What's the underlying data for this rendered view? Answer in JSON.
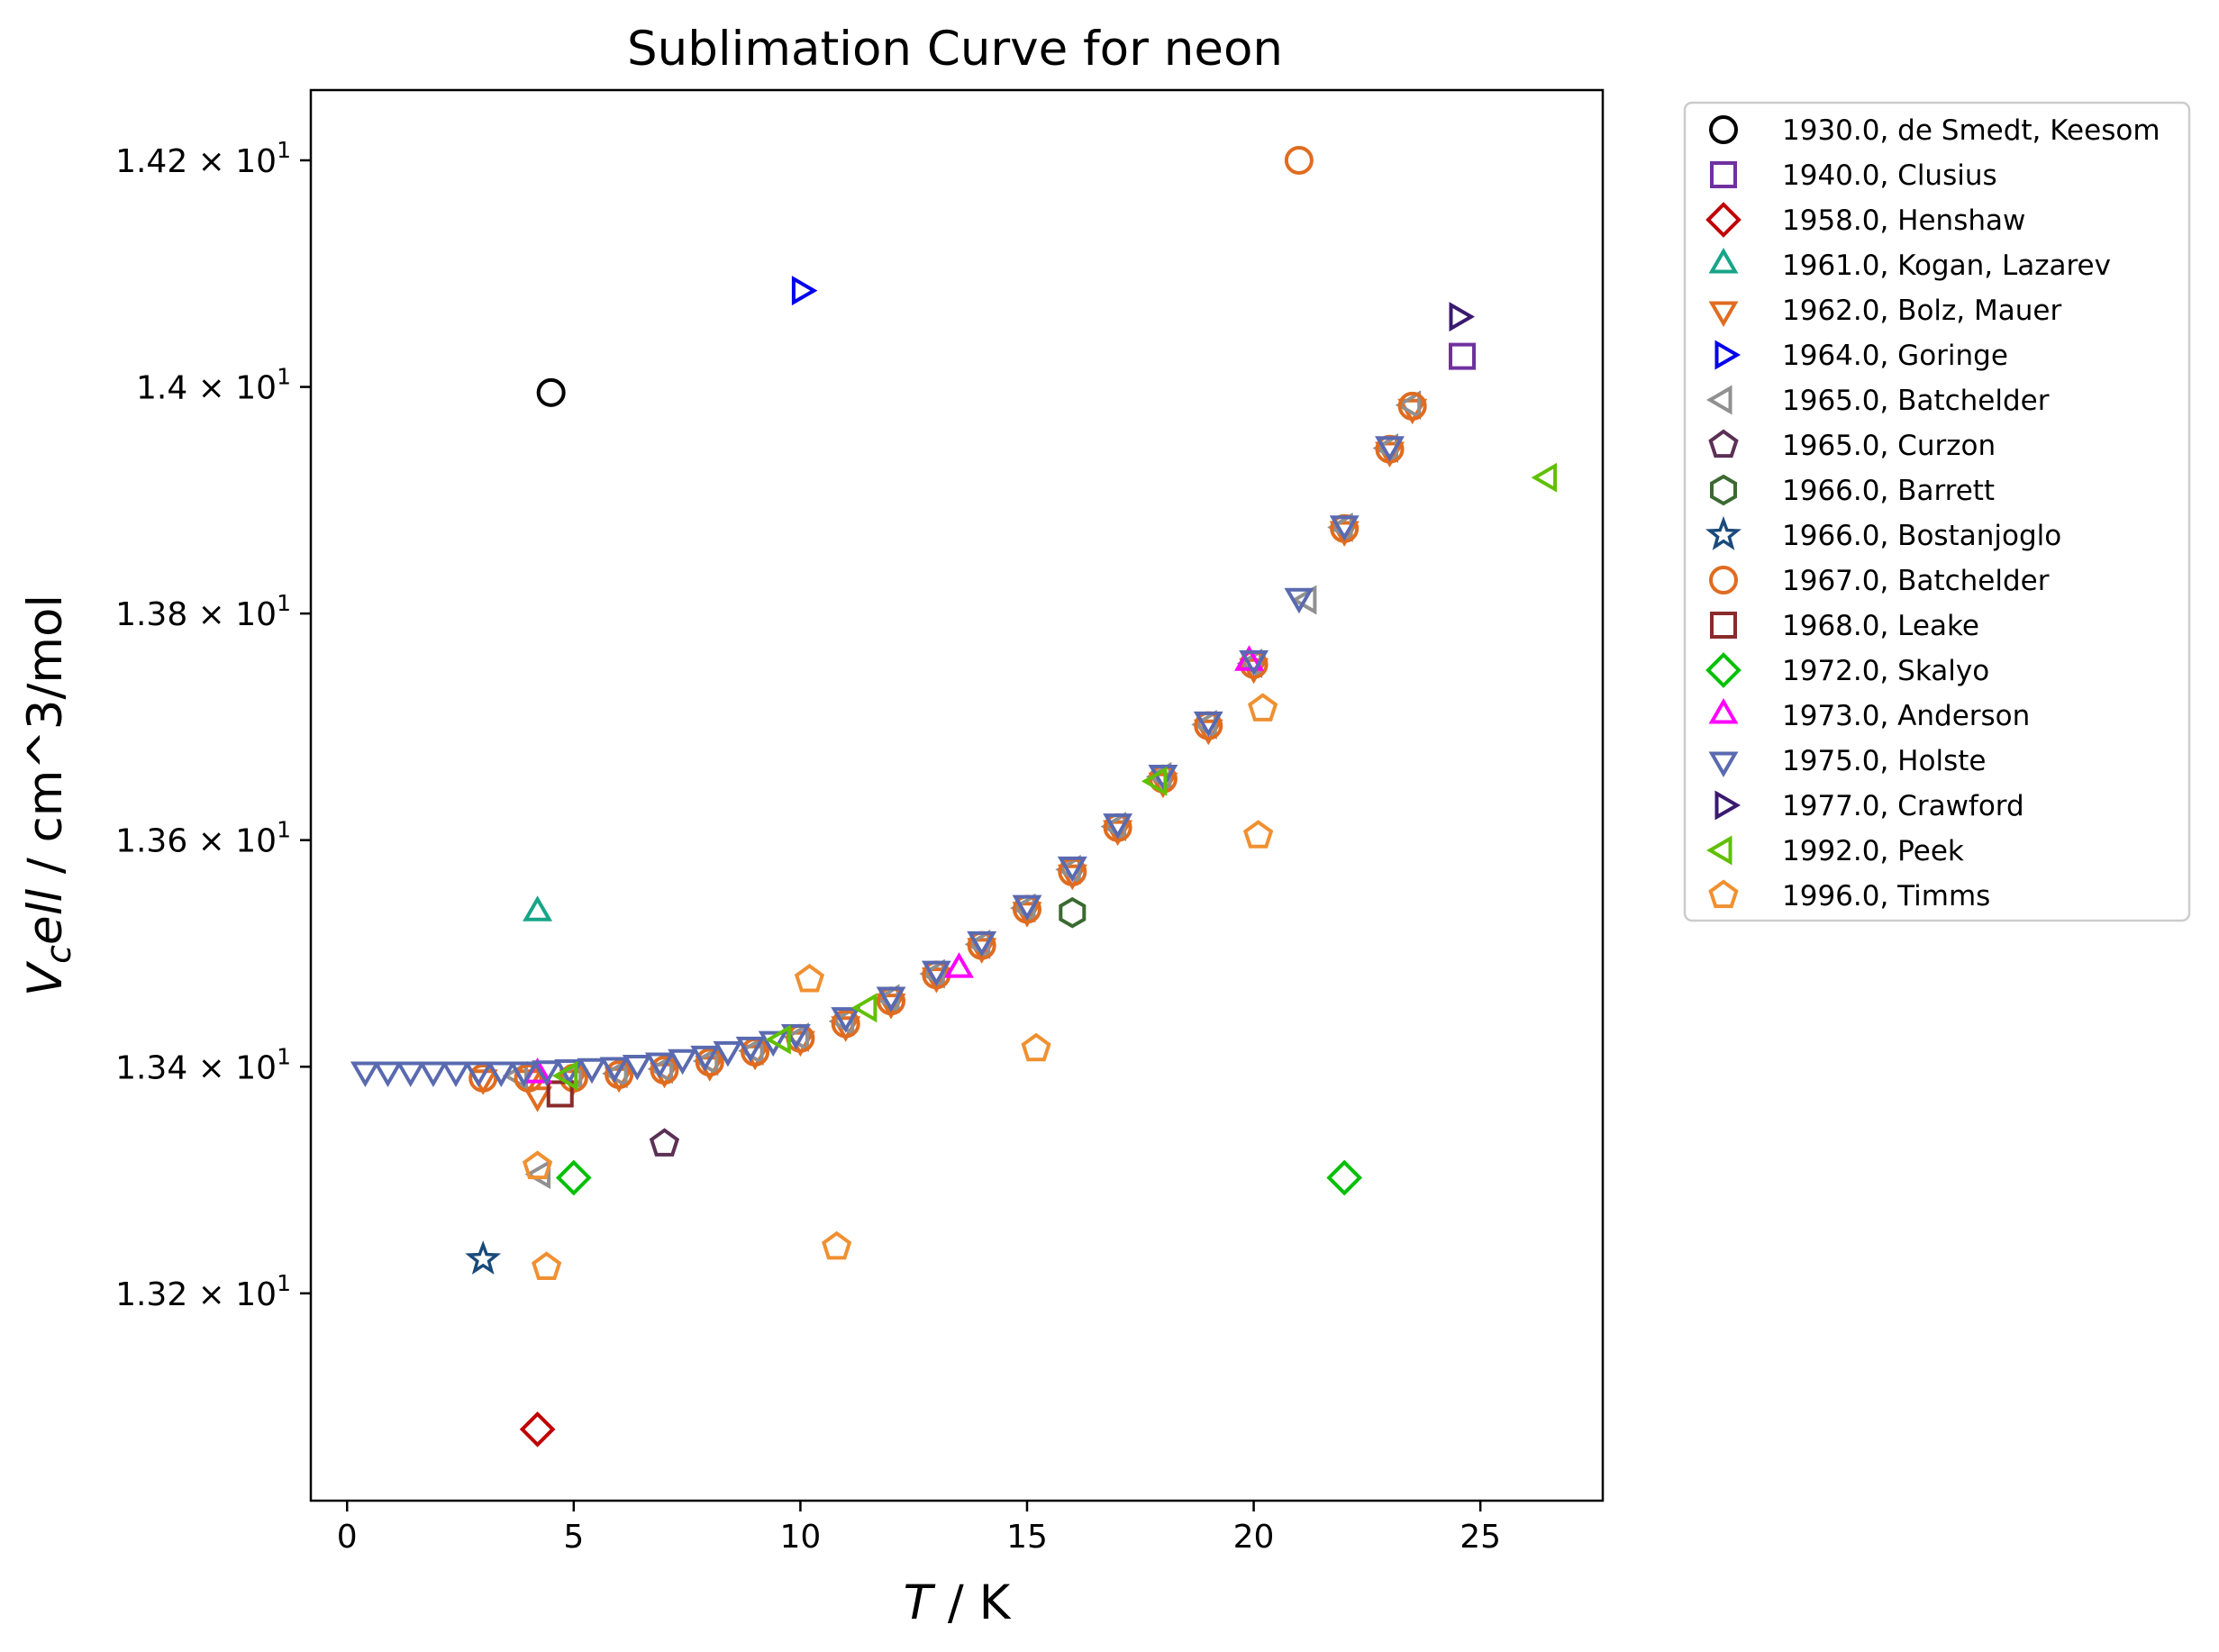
{
  "chart_data": {
    "type": "scatter",
    "title": "Sublimation Curve for neon",
    "xlabel": {
      "symbol": "T",
      "rest": " / K"
    },
    "ylabel": {
      "symbol": "V",
      "sub": "c",
      "symbol2": "ell",
      "rest": " / cm^3/mol"
    },
    "xlim": [
      -0.8,
      27.7
    ],
    "ylim": [
      13.017,
      14.262
    ],
    "grid": false,
    "legend_position": "outside-right",
    "x_ticks": [
      {
        "value": 0,
        "label": "0"
      },
      {
        "value": 5,
        "label": "5"
      },
      {
        "value": 10,
        "label": "10"
      },
      {
        "value": 15,
        "label": "15"
      },
      {
        "value": 20,
        "label": "20"
      },
      {
        "value": 25,
        "label": "25"
      }
    ],
    "y_ticks": [
      {
        "value": 13.2,
        "mantissa": "1.32",
        "times": "×",
        "base": "10",
        "exp": "1"
      },
      {
        "value": 13.4,
        "mantissa": "1.34",
        "times": "×",
        "base": "10",
        "exp": "1"
      },
      {
        "value": 13.6,
        "mantissa": "1.36",
        "times": "×",
        "base": "10",
        "exp": "1"
      },
      {
        "value": 13.8,
        "mantissa": "1.38",
        "times": "×",
        "base": "10",
        "exp": "1"
      },
      {
        "value": 14.0,
        "mantissa": "1.4",
        "times": "×",
        "base": "10",
        "exp": "1"
      },
      {
        "value": 14.2,
        "mantissa": "1.42",
        "times": "×",
        "base": "10",
        "exp": "1"
      }
    ],
    "series": [
      {
        "name": "1930.0, de Smedt, Keesom",
        "marker": "circle",
        "color": "#000000",
        "points": [
          [
            4.5,
            13.995
          ]
        ]
      },
      {
        "name": "1940.0, Clusius",
        "marker": "square",
        "color": "#7030a0",
        "points": [
          [
            24.6,
            14.027
          ]
        ]
      },
      {
        "name": "1958.0, Henshaw",
        "marker": "diamond",
        "color": "#c00000",
        "points": [
          [
            4.2,
            13.08
          ]
        ]
      },
      {
        "name": "1961.0, Kogan, Lazarev",
        "marker": "triangle-up",
        "color": "#17a589",
        "points": [
          [
            4.2,
            13.536
          ]
        ]
      },
      {
        "name": "1962.0, Bolz, Mauer",
        "marker": "triangle-down",
        "color": "#e06c20",
        "points": [
          [
            3.0,
            13.39
          ],
          [
            4.0,
            13.39
          ],
          [
            4.2,
            13.375
          ],
          [
            5.0,
            13.39
          ],
          [
            6.0,
            13.392
          ],
          [
            7.0,
            13.396
          ],
          [
            8.0,
            13.402
          ],
          [
            9.0,
            13.412
          ],
          [
            10.0,
            13.424
          ],
          [
            11.0,
            13.437
          ],
          [
            12.0,
            13.457
          ],
          [
            13.0,
            13.48
          ],
          [
            14.0,
            13.506
          ],
          [
            15.0,
            13.538
          ],
          [
            16.0,
            13.571
          ],
          [
            17.0,
            13.61
          ],
          [
            18.0,
            13.652
          ],
          [
            19.0,
            13.699
          ],
          [
            20.0,
            13.753
          ],
          [
            22.0,
            13.874
          ],
          [
            23.0,
            13.944
          ],
          [
            23.5,
            13.982
          ]
        ]
      },
      {
        "name": "1964.0, Goringe",
        "marker": "triangle-right",
        "color": "#0000ee",
        "points": [
          [
            10.0,
            14.085
          ]
        ]
      },
      {
        "name": "1965.0, Batchelder",
        "marker": "triangle-left",
        "color": "#909090",
        "points": [
          [
            3.8,
            13.392
          ],
          [
            4.3,
            13.305
          ],
          [
            5.0,
            13.393
          ],
          [
            6.0,
            13.394
          ],
          [
            7.0,
            13.398
          ],
          [
            8.0,
            13.405
          ],
          [
            9.0,
            13.414
          ],
          [
            10.0,
            13.426
          ],
          [
            11.0,
            13.44
          ],
          [
            12.0,
            13.46
          ],
          [
            13.0,
            13.482
          ],
          [
            14.0,
            13.508
          ],
          [
            15.0,
            13.54
          ],
          [
            16.0,
            13.574
          ],
          [
            17.0,
            13.612
          ],
          [
            18.0,
            13.656
          ],
          [
            19.0,
            13.702
          ],
          [
            20.0,
            13.756
          ],
          [
            21.2,
            13.812
          ],
          [
            22.0,
            13.876
          ],
          [
            23.0,
            13.946
          ],
          [
            23.5,
            13.984
          ]
        ]
      },
      {
        "name": "1965.0, Curzon",
        "marker": "pentagon",
        "color": "#5c3055",
        "points": [
          [
            7.0,
            13.332
          ]
        ]
      },
      {
        "name": "1966.0, Barrett",
        "marker": "hexagon",
        "color": "#3a6a30",
        "points": [
          [
            16.0,
            13.536
          ]
        ]
      },
      {
        "name": "1966.0, Bostanjoglo",
        "marker": "star",
        "color": "#1a4a7a",
        "points": [
          [
            3.0,
            13.23
          ]
        ]
      },
      {
        "name": "1967.0, Batchelder",
        "marker": "circle",
        "color": "#e06c20",
        "points": [
          [
            3.0,
            13.39
          ],
          [
            4.0,
            13.39
          ],
          [
            5.0,
            13.39
          ],
          [
            6.0,
            13.393
          ],
          [
            7.0,
            13.397
          ],
          [
            8.0,
            13.404
          ],
          [
            9.0,
            13.413
          ],
          [
            10.0,
            13.425
          ],
          [
            11.0,
            13.438
          ],
          [
            12.0,
            13.458
          ],
          [
            13.0,
            13.481
          ],
          [
            14.0,
            13.507
          ],
          [
            15.0,
            13.539
          ],
          [
            16.0,
            13.572
          ],
          [
            17.0,
            13.611
          ],
          [
            18.0,
            13.654
          ],
          [
            19.0,
            13.701
          ],
          [
            20.0,
            13.755
          ],
          [
            21.0,
            14.2
          ],
          [
            22.0,
            13.875
          ],
          [
            23.0,
            13.945
          ],
          [
            23.5,
            13.983
          ]
        ]
      },
      {
        "name": "1968.0, Leake",
        "marker": "square",
        "color": "#8b2a2a",
        "points": [
          [
            4.7,
            13.376
          ]
        ]
      },
      {
        "name": "1972.0, Skalyo",
        "marker": "diamond",
        "color": "#00c000",
        "points": [
          [
            5.0,
            13.302
          ],
          [
            22.0,
            13.302
          ]
        ]
      },
      {
        "name": "1973.0, Anderson",
        "marker": "triangle-up",
        "color": "#ff00ff",
        "points": [
          [
            4.2,
            13.393
          ],
          [
            13.5,
            13.486
          ],
          [
            19.9,
            13.757
          ]
        ]
      },
      {
        "name": "1975.0, Holste",
        "marker": "triangle-down",
        "color": "#5a6ab0",
        "points": [
          [
            0.4,
            13.397
          ],
          [
            0.9,
            13.397
          ],
          [
            1.4,
            13.397
          ],
          [
            1.9,
            13.397
          ],
          [
            2.4,
            13.397
          ],
          [
            2.9,
            13.397
          ],
          [
            3.4,
            13.397
          ],
          [
            3.9,
            13.397
          ],
          [
            4.4,
            13.398
          ],
          [
            4.9,
            13.399
          ],
          [
            5.4,
            13.4
          ],
          [
            5.9,
            13.401
          ],
          [
            6.4,
            13.403
          ],
          [
            6.9,
            13.405
          ],
          [
            7.4,
            13.408
          ],
          [
            7.9,
            13.411
          ],
          [
            8.4,
            13.415
          ],
          [
            8.9,
            13.419
          ],
          [
            9.4,
            13.424
          ],
          [
            9.9,
            13.43
          ],
          [
            11.0,
            13.445
          ],
          [
            12.0,
            13.463
          ],
          [
            13.0,
            13.486
          ],
          [
            14.0,
            13.512
          ],
          [
            15.0,
            13.544
          ],
          [
            16.0,
            13.578
          ],
          [
            17.0,
            13.616
          ],
          [
            18.0,
            13.659
          ],
          [
            19.0,
            13.706
          ],
          [
            20.0,
            13.76
          ],
          [
            21.0,
            13.815
          ],
          [
            22.0,
            13.879
          ],
          [
            23.0,
            13.949
          ]
        ]
      },
      {
        "name": "1977.0, Crawford",
        "marker": "triangle-right",
        "color": "#3a1a70",
        "points": [
          [
            24.5,
            14.062
          ]
        ]
      },
      {
        "name": "1992.0, Peek",
        "marker": "triangle-left",
        "color": "#60c000",
        "points": [
          [
            4.9,
            13.392
          ],
          [
            9.6,
            13.424
          ],
          [
            11.5,
            13.452
          ],
          [
            17.9,
            13.652
          ],
          [
            26.5,
            13.92
          ]
        ]
      },
      {
        "name": "1996.0, Timms",
        "marker": "pentagon",
        "color": "#f09030",
        "points": [
          [
            4.2,
            13.312
          ],
          [
            4.4,
            13.223
          ],
          [
            10.2,
            13.477
          ],
          [
            10.8,
            13.241
          ],
          [
            15.2,
            13.416
          ],
          [
            20.1,
            13.604
          ],
          [
            20.2,
            13.716
          ]
        ]
      }
    ]
  }
}
